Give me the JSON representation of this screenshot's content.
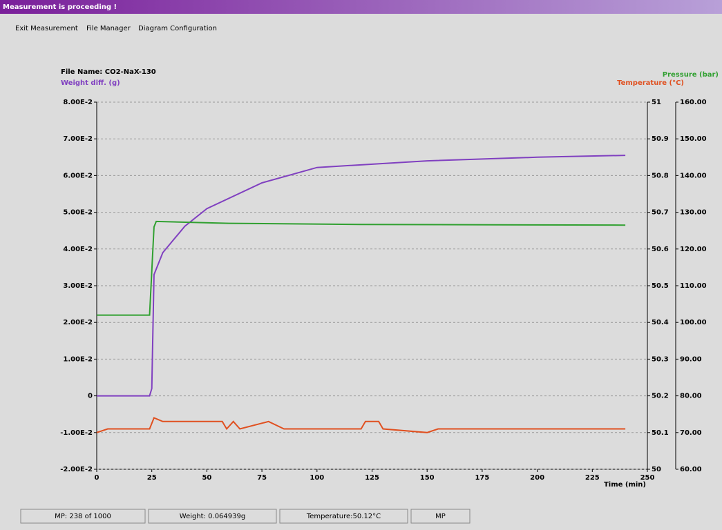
{
  "window": {
    "title": "Measurement is proceeding !",
    "menu": [
      "Exit Measurement",
      "File Manager",
      "Diagram Configuration"
    ],
    "status": [
      "MP: 238 of 1000",
      "Weight: 0.064939g",
      "Temperature:50.12°C",
      "MP"
    ]
  },
  "chart_data": {
    "type": "line",
    "title": "File Name: CO2-NaX-130",
    "ylabel": "Weight diff. (g)",
    "y2label": "Temperature (°C)",
    "y3label": "Pressure (bar)",
    "xlabel": "Time (min)",
    "xlim": [
      0,
      250
    ],
    "xticks": [
      0,
      25,
      50,
      75,
      100,
      125,
      150,
      175,
      200,
      225,
      250
    ],
    "ylim": [
      -0.02,
      0.08
    ],
    "yticks": [
      {
        "value": -0.02,
        "label": "-2.00E-2"
      },
      {
        "value": -0.01,
        "label": "-1.00E-2"
      },
      0,
      {
        "value": 0.01,
        "label": "1.00E-2"
      },
      {
        "value": 0.02,
        "label": "2.00E-2"
      },
      {
        "value": 0.03,
        "label": "3.00E-2"
      },
      {
        "value": 0.04,
        "label": "4.00E-2"
      },
      {
        "value": 0.05,
        "label": "5.00E-2"
      },
      {
        "value": 0.06,
        "label": "6.00E-2"
      },
      {
        "value": 0.07,
        "label": "7.00E-2"
      },
      {
        "value": 0.08,
        "label": "8.00E-2"
      }
    ],
    "y2lim": [
      50,
      51
    ],
    "y2ticks": [
      50,
      50.1,
      50.2,
      50.3,
      50.4,
      50.5,
      50.6,
      50.7,
      50.8,
      50.9,
      51
    ],
    "y3lim": [
      60,
      160
    ],
    "y3ticks": [
      {
        "value": 60,
        "label": "60.00"
      },
      {
        "value": 70,
        "label": "70.00"
      },
      {
        "value": 80,
        "label": "80.00"
      },
      {
        "value": 90,
        "label": "90.00"
      },
      {
        "value": 100,
        "label": "100.00"
      },
      {
        "value": 110,
        "label": "110.00"
      },
      {
        "value": 120,
        "label": "120.00"
      },
      {
        "value": 130,
        "label": "130.00"
      },
      {
        "value": 140,
        "label": "140.00"
      },
      {
        "value": 150,
        "label": "150.00"
      },
      {
        "value": 160,
        "label": "160.00"
      }
    ],
    "grid": true,
    "series": [
      {
        "name": "Weight diff.",
        "color": "#8040c0",
        "axis": "y",
        "x": [
          0,
          24,
          25,
          26,
          30,
          40,
          50,
          75,
          100,
          150,
          200,
          240
        ],
        "values": [
          0,
          0,
          0.002,
          0.033,
          0.039,
          0.0462,
          0.051,
          0.058,
          0.0622,
          0.064,
          0.065,
          0.0655
        ]
      },
      {
        "name": "Temperature",
        "color": "#e05020",
        "axis": "y2",
        "x": [
          0,
          5,
          24,
          26,
          30,
          57,
          59,
          62,
          65,
          78,
          85,
          120,
          122,
          128,
          130,
          150,
          155,
          240
        ],
        "values": [
          50.1,
          50.11,
          50.11,
          50.14,
          50.13,
          50.13,
          50.11,
          50.13,
          50.11,
          50.13,
          50.11,
          50.11,
          50.13,
          50.13,
          50.11,
          50.1,
          50.11,
          50.11
        ]
      },
      {
        "name": "Pressure",
        "color": "#30a030",
        "axis": "y3",
        "x": [
          0,
          24,
          26,
          27,
          60,
          120,
          180,
          240
        ],
        "values": [
          102,
          102,
          126,
          127.5,
          127,
          126.7,
          126.6,
          126.5
        ]
      }
    ]
  }
}
